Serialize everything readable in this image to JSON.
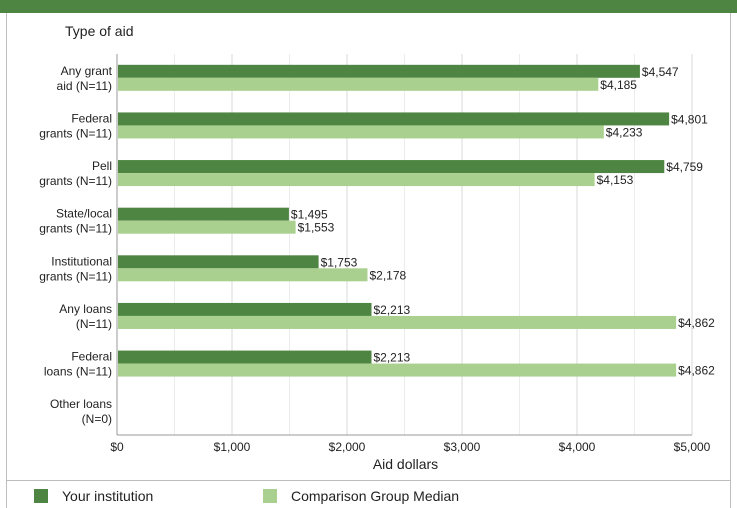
{
  "chart_data": {
    "type": "bar",
    "orientation": "horizontal",
    "title": "Type of aid",
    "xlabel": "Aid dollars",
    "xlim": [
      0,
      5000
    ],
    "xticks": [
      0,
      1000,
      2000,
      3000,
      4000,
      5000
    ],
    "xtick_labels": [
      "$0",
      "$1,000",
      "$2,000",
      "$3,000",
      "$4,000",
      "$5,000"
    ],
    "grid": true,
    "legend_position": "bottom",
    "categories": [
      [
        "Any grant",
        "aid (N=11)"
      ],
      [
        "Federal",
        "grants (N=11)"
      ],
      [
        "Pell",
        "grants (N=11)"
      ],
      [
        "State/local",
        "grants (N=11)"
      ],
      [
        "Institutional",
        "grants (N=11)"
      ],
      [
        "Any loans",
        "(N=11)"
      ],
      [
        "Federal",
        "loans (N=11)"
      ],
      [
        "Other loans",
        "(N=0)"
      ]
    ],
    "series": [
      {
        "name": "Your institution",
        "color": "#4e8542",
        "values": [
          4547,
          4801,
          4759,
          1495,
          1753,
          2213,
          2213,
          null
        ],
        "labels": [
          "$4,547",
          "$4,801",
          "$4,759",
          "$1,495",
          "$1,753",
          "$2,213",
          "$2,213",
          ""
        ]
      },
      {
        "name": "Comparison Group Median",
        "color": "#a9d08e",
        "values": [
          4185,
          4233,
          4153,
          1553,
          2178,
          4862,
          4862,
          null
        ],
        "labels": [
          "$4,185",
          "$4,233",
          "$4,153",
          "$1,553",
          "$2,178",
          "$4,862",
          "$4,862",
          ""
        ]
      }
    ]
  },
  "legend": {
    "items": [
      {
        "label": "Your institution",
        "color": "#4e8542"
      },
      {
        "label": "Comparison Group Median",
        "color": "#a9d08e"
      }
    ]
  }
}
